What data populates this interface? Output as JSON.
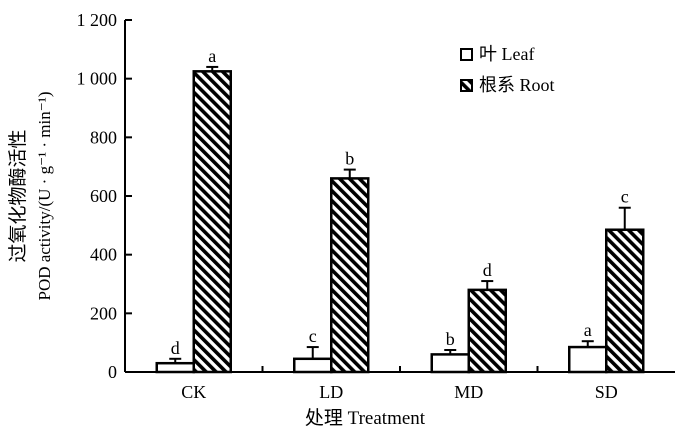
{
  "chart_data": {
    "type": "bar",
    "categories": [
      "CK",
      "LD",
      "MD",
      "SD"
    ],
    "series": [
      {
        "name": "叶 Leaf",
        "pattern": "hollow",
        "values": [
          30,
          45,
          60,
          85
        ],
        "errors": [
          15,
          40,
          15,
          20
        ],
        "letters": [
          "d",
          "c",
          "b",
          "a"
        ]
      },
      {
        "name": "根系 Root",
        "pattern": "diagonal-hatch",
        "values": [
          1025,
          660,
          280,
          485
        ],
        "errors": [
          15,
          30,
          30,
          75
        ],
        "letters": [
          "a",
          "b",
          "d",
          "c"
        ]
      }
    ],
    "xlabel": "处理 Treatment",
    "ylabel_line1": "过氧化物酶活性",
    "ylabel_line2": "POD activity/(U · g⁻¹ · min⁻¹)",
    "ylim": [
      0,
      1200
    ],
    "yticks": [
      0,
      200,
      400,
      600,
      800,
      1000,
      1200
    ],
    "ytick_labels": [
      "0",
      "200",
      "400",
      "600",
      "800",
      "1 000",
      "1 200"
    ],
    "legend_position": "top-right",
    "grid": false
  }
}
